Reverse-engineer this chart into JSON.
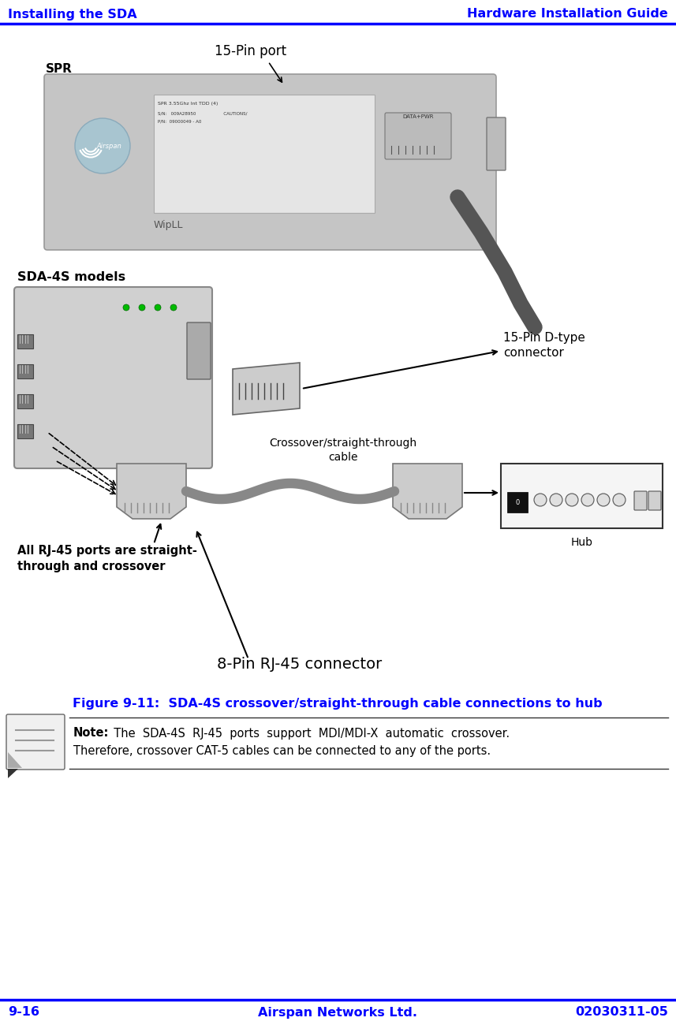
{
  "header_left": "Installing the SDA",
  "header_right": "Hardware Installation Guide",
  "footer_left": "9-16",
  "footer_center": "Airspan Networks Ltd.",
  "footer_right": "02030311-05",
  "figure_caption": "Figure 9-11:  SDA-4S crossover/straight-through cable connections to hub",
  "note_bold": "Note:",
  "note_line1": "  The  SDA-4S  RJ-45  ports  support  MDI/MDI-X  automatic  crossover.",
  "note_line2": "Therefore, crossover CAT-5 cables can be connected to any of the ports.",
  "header_color": "#0000FF",
  "caption_color": "#0000FF",
  "line_color": "#0000FF",
  "bg_color": "#FFFFFF",
  "text_color": "#000000",
  "fig_width": 8.57,
  "fig_height": 13.0,
  "dpi": 100
}
